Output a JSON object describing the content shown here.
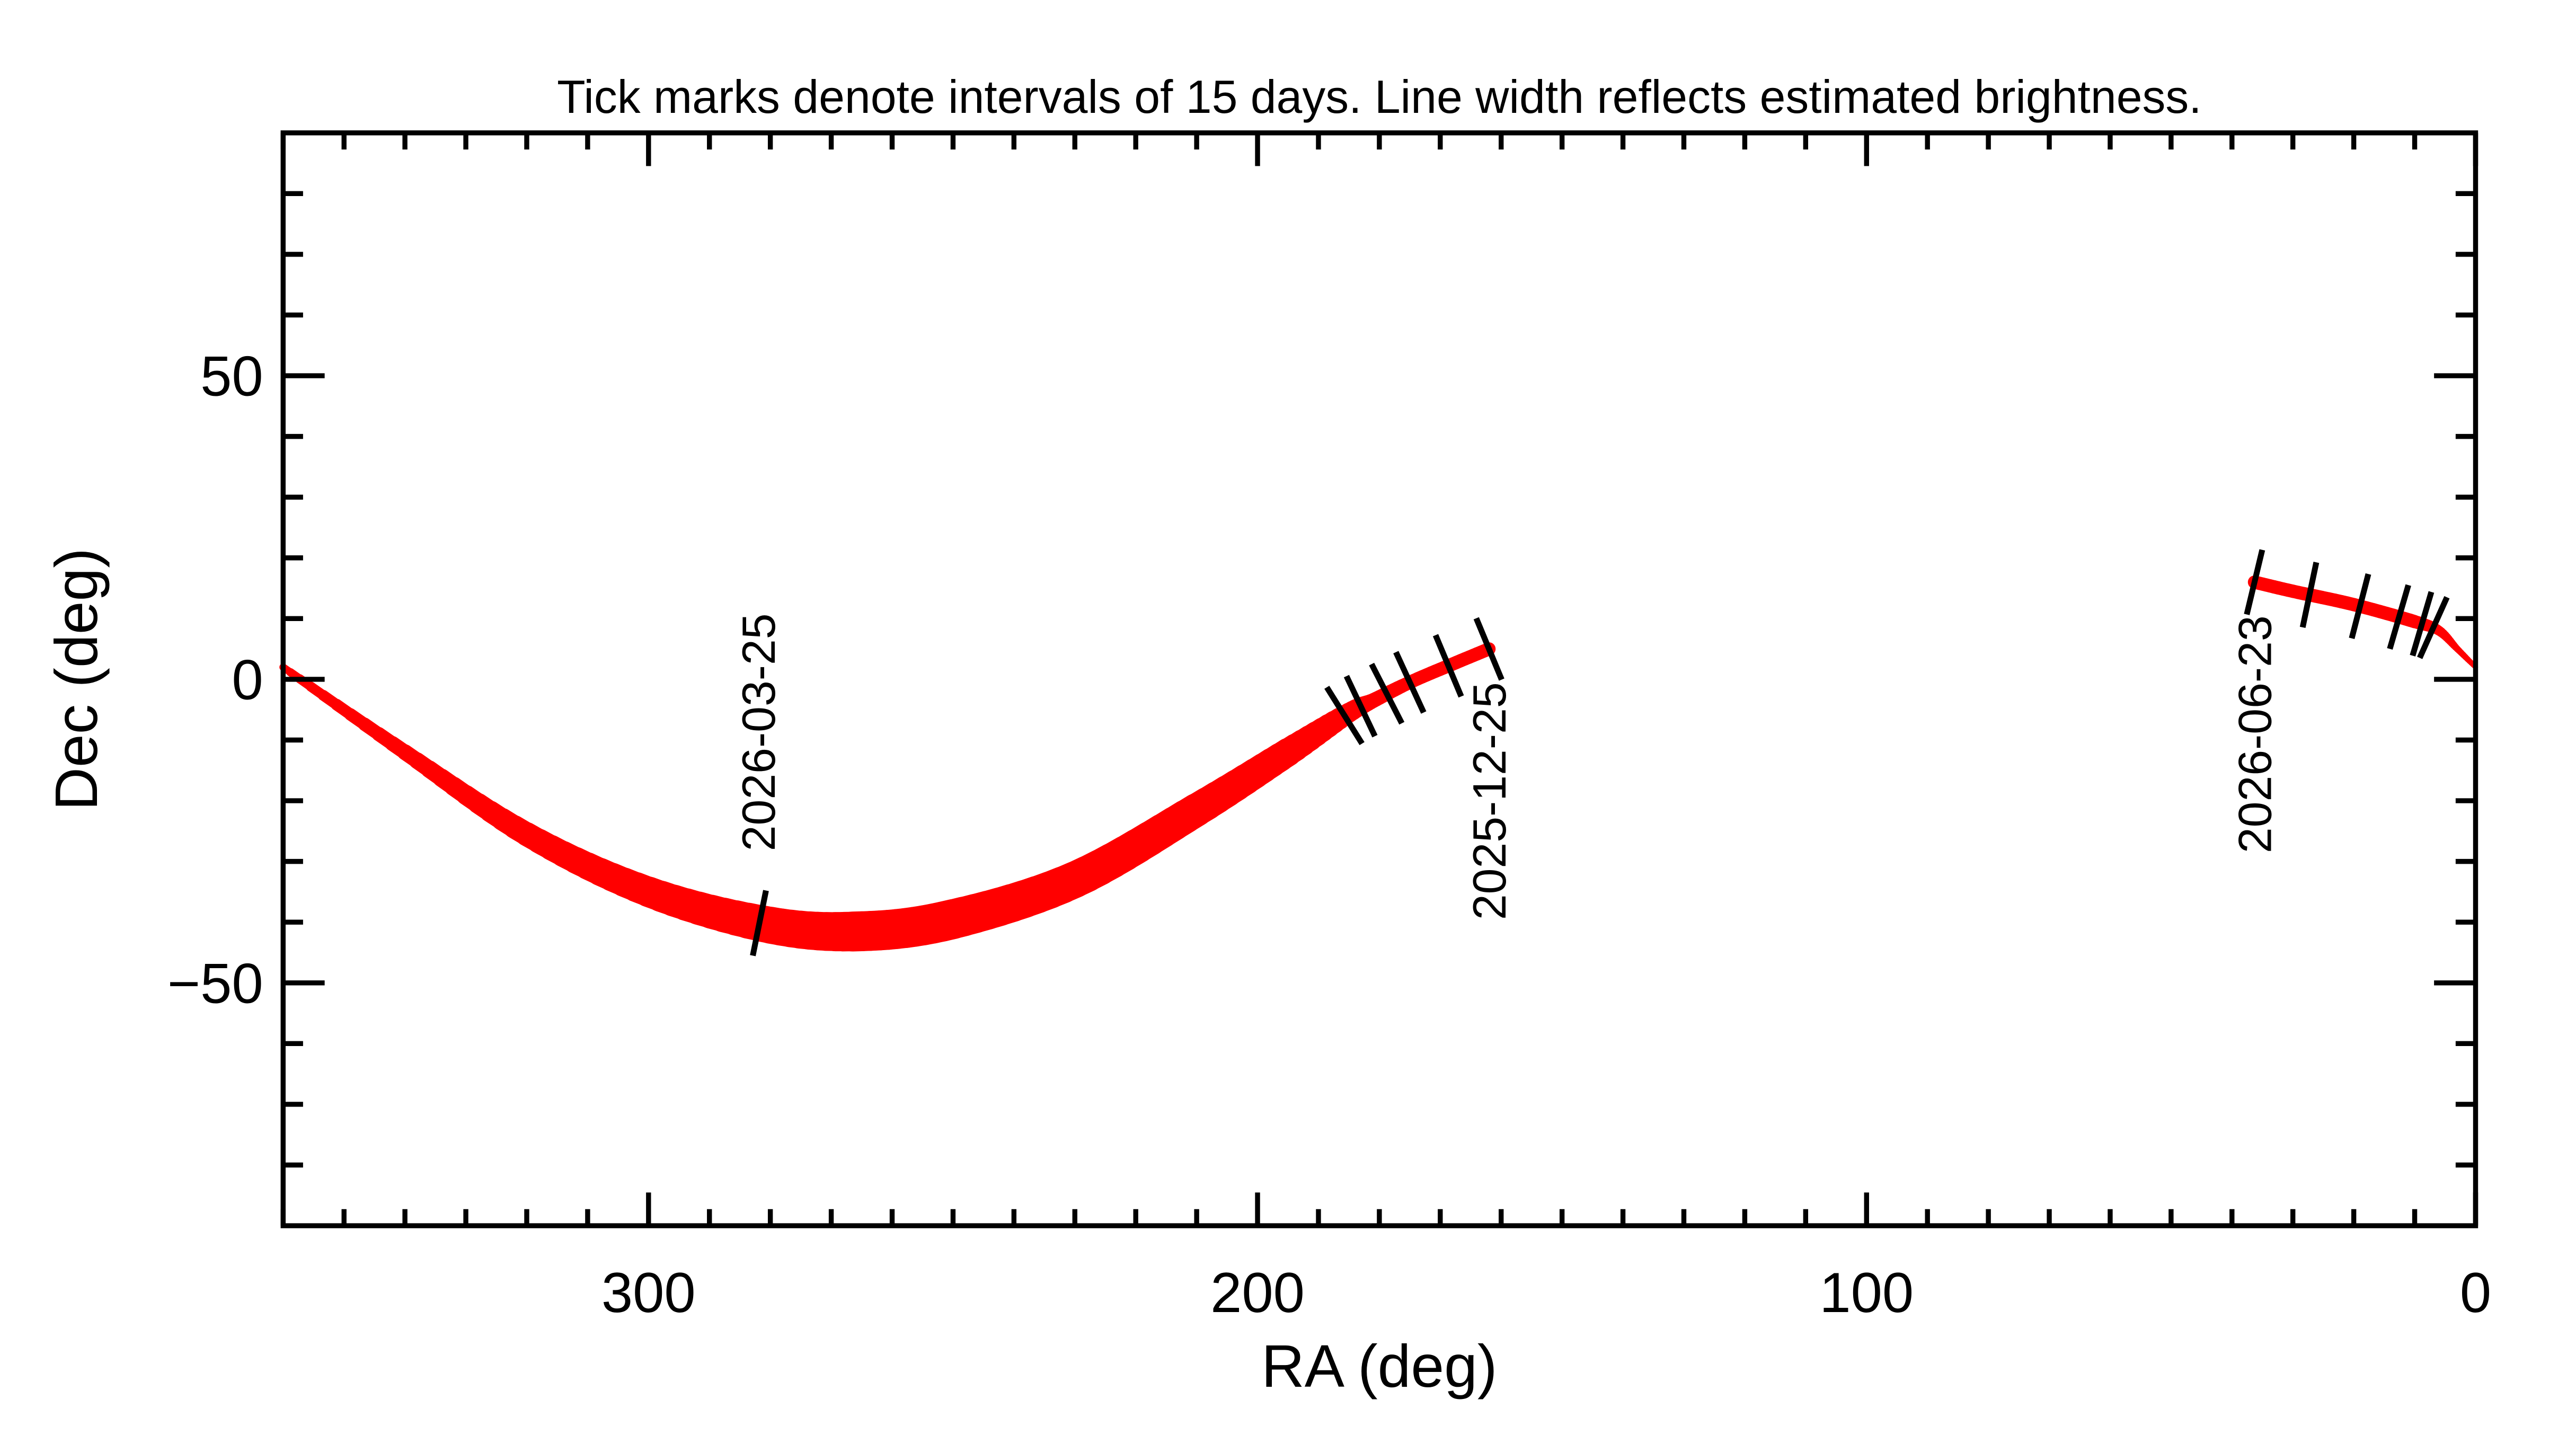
{
  "chart_data": {
    "type": "line",
    "title": "Tick marks denote intervals of 15 days.  Line width reflects estimated brightness.",
    "xlabel": "RA (deg)",
    "ylabel": "Dec (deg)",
    "xlim": [
      360,
      0
    ],
    "ylim": [
      -90,
      90
    ],
    "x_reversed": true,
    "grid": false,
    "xticks": [
      300,
      200,
      100,
      0
    ],
    "xtick_labels": [
      "300",
      "200",
      "100",
      "0"
    ],
    "yticks": [
      50,
      0,
      -50
    ],
    "ytick_labels": [
      "50",
      "0",
      "−50"
    ],
    "x_minor_step": 10,
    "y_minor_step": 10,
    "line_color": "#ff0000",
    "tick_mark_color": "#000000",
    "series": [
      {
        "points": [
          {
            "ra": 162,
            "dec": 5,
            "width": 8
          },
          {
            "ra": 168,
            "dec": 2.5,
            "width": 8
          },
          {
            "ra": 175,
            "dec": -0.5,
            "width": 8
          },
          {
            "ra": 181,
            "dec": -3.5,
            "width": 9
          },
          {
            "ra": 185,
            "dec": -5.5,
            "width": 12
          },
          {
            "ra": 195,
            "dec": -12,
            "width": 17
          },
          {
            "ra": 210,
            "dec": -21.5,
            "width": 20
          },
          {
            "ra": 230,
            "dec": -33,
            "width": 22
          },
          {
            "ra": 250,
            "dec": -39.5,
            "width": 24
          },
          {
            "ra": 265,
            "dec": -41.5,
            "width": 24
          },
          {
            "ra": 280,
            "dec": -40.5,
            "width": 22
          },
          {
            "ra": 300,
            "dec": -35,
            "width": 18
          },
          {
            "ra": 320,
            "dec": -25.5,
            "width": 14
          },
          {
            "ra": 340,
            "dec": -12,
            "width": 9
          },
          {
            "ra": 360,
            "dec": 2,
            "width": 4
          }
        ],
        "tick_ras": [
          162,
          169,
          175,
          179,
          183,
          186,
          282
        ]
      },
      {
        "points": [
          {
            "ra": 0,
            "dec": 2,
            "width": 3
          },
          {
            "ra": 3,
            "dec": 5,
            "width": 4
          },
          {
            "ra": 6,
            "dec": 8,
            "width": 6
          },
          {
            "ra": 10,
            "dec": 9.5,
            "width": 8
          },
          {
            "ra": 20,
            "dec": 12.3,
            "width": 8
          },
          {
            "ra": 30,
            "dec": 14.5,
            "width": 8
          },
          {
            "ra": 36.3,
            "dec": 16,
            "width": 8
          }
        ],
        "tick_ras": [
          6.8,
          8.7,
          12.8,
          19.1,
          27.3,
          36.3
        ]
      }
    ],
    "date_labels": [
      {
        "text": "2026-03-25",
        "ra": 282,
        "dec": -41,
        "side": "above"
      },
      {
        "text": "2025-12-25",
        "ra": 162,
        "dec": 5,
        "side": "below"
      },
      {
        "text": "2026-06-23",
        "ra": 36.3,
        "dec": 16,
        "side": "below"
      }
    ]
  }
}
